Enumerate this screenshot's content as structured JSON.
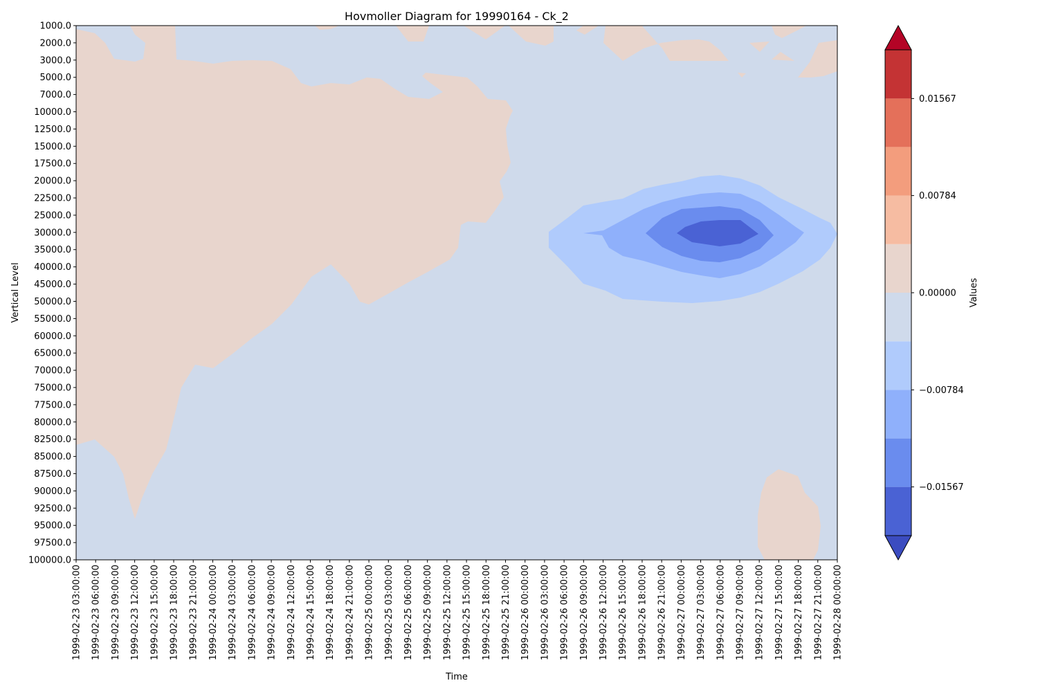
{
  "chart_data": {
    "type": "heatmap",
    "subtype": "filled-contour (Hovmoller diagram)",
    "title": "Hovmoller Diagram for 19990164 - Ck_2",
    "xlabel": "Time",
    "ylabel": "Vertical Level",
    "colorbar_label": "Values",
    "x_ticks": [
      "1999-02-23 03:00:00",
      "1999-02-23 06:00:00",
      "1999-02-23 09:00:00",
      "1999-02-23 12:00:00",
      "1999-02-23 15:00:00",
      "1999-02-23 18:00:00",
      "1999-02-23 21:00:00",
      "1999-02-24 00:00:00",
      "1999-02-24 03:00:00",
      "1999-02-24 06:00:00",
      "1999-02-24 09:00:00",
      "1999-02-24 12:00:00",
      "1999-02-24 15:00:00",
      "1999-02-24 18:00:00",
      "1999-02-24 21:00:00",
      "1999-02-25 00:00:00",
      "1999-02-25 03:00:00",
      "1999-02-25 06:00:00",
      "1999-02-25 09:00:00",
      "1999-02-25 12:00:00",
      "1999-02-25 15:00:00",
      "1999-02-25 18:00:00",
      "1999-02-25 21:00:00",
      "1999-02-26 00:00:00",
      "1999-02-26 03:00:00",
      "1999-02-26 06:00:00",
      "1999-02-26 09:00:00",
      "1999-02-26 12:00:00",
      "1999-02-26 15:00:00",
      "1999-02-26 18:00:00",
      "1999-02-26 21:00:00",
      "1999-02-27 00:00:00",
      "1999-02-27 03:00:00",
      "1999-02-27 06:00:00",
      "1999-02-27 09:00:00",
      "1999-02-27 12:00:00",
      "1999-02-27 15:00:00",
      "1999-02-27 18:00:00",
      "1999-02-27 21:00:00",
      "1999-02-28 00:00:00"
    ],
    "y_ticks": [
      "1000.0",
      "2000.0",
      "3000.0",
      "5000.0",
      "7000.0",
      "10000.0",
      "12500.0",
      "15000.0",
      "17500.0",
      "20000.0",
      "22500.0",
      "25000.0",
      "30000.0",
      "35000.0",
      "40000.0",
      "45000.0",
      "50000.0",
      "55000.0",
      "60000.0",
      "65000.0",
      "70000.0",
      "75000.0",
      "77500.0",
      "80000.0",
      "82500.0",
      "85000.0",
      "87500.0",
      "90000.0",
      "92500.0",
      "95000.0",
      "97500.0",
      "100000.0"
    ],
    "y_inverted": true,
    "colorbar_ticks": [
      "0.01567",
      "0.00784",
      "0.00000",
      "−0.00784",
      "−0.01567"
    ],
    "colorbar_tick_values": [
      0.01567,
      0.00784,
      0.0,
      -0.00784,
      -0.01567
    ],
    "colorbar_extend": "both",
    "colormap": "coolwarm",
    "levels": [
      -0.0196,
      -0.01567,
      -0.01176,
      -0.00784,
      -0.00392,
      0.0,
      0.00392,
      0.00784,
      0.01176,
      0.01567,
      0.0196
    ],
    "colors": [
      "#4a62d4",
      "#6a8cee",
      "#8fb0fb",
      "#b0cbfc",
      "#cfdaeb",
      "#e8d5cd",
      "#f6bca2",
      "#f39d7d",
      "#e4705a",
      "#c43334"
    ],
    "extend_under_color": "#3b4cc0",
    "extend_over_color": "#b40426",
    "regions": [
      {
        "level_range": [
          0.0,
          0.00392
        ],
        "description": "positive area on the left from 1999-02-23 03:00 through about 1999-02-25 21:00 between about 1000 and 50000, reaching down to 100000 on 1999-02-23"
      },
      {
        "level_range": [
          0.0,
          0.00392
        ],
        "description": "positive patch near 1999-02-27 12:00 to 21:00 between about 87500 and 100000"
      },
      {
        "level_range": [
          -0.0196,
          -0.01567
        ],
        "description": "minimum core near 1999-02-27 06:00 at about 30000"
      },
      {
        "level_range": [
          -0.00392,
          0.0
        ],
        "description": "background values elsewhere"
      }
    ]
  }
}
